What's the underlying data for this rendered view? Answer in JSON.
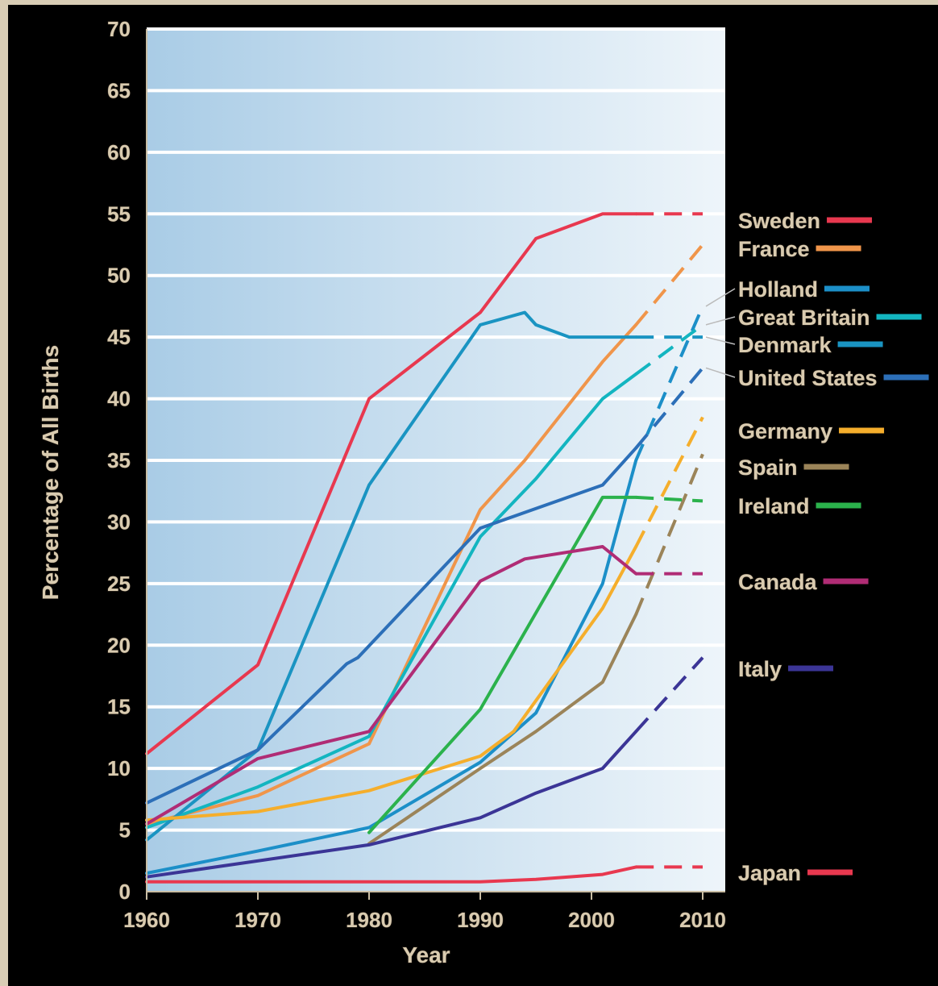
{
  "chart_data": {
    "type": "line",
    "title": "",
    "xlabel": "Year",
    "ylabel": "Percentage of All Births",
    "xlim": [
      1960,
      2010
    ],
    "ylim": [
      0,
      70
    ],
    "x_ticks": [
      1960,
      1970,
      1980,
      1990,
      2000,
      2010
    ],
    "y_ticks": [
      0,
      5,
      10,
      15,
      20,
      25,
      30,
      35,
      40,
      45,
      50,
      55,
      60,
      65,
      70
    ],
    "grid": true,
    "legend_position": "right",
    "series": [
      {
        "name": "Sweden",
        "color": "#e8384f",
        "points": [
          [
            1960,
            11.2
          ],
          [
            1970,
            18.4
          ],
          [
            1980,
            40
          ],
          [
            1990,
            47
          ],
          [
            1995,
            53
          ],
          [
            2001,
            55
          ],
          [
            2004,
            55
          ]
        ],
        "projection": [
          [
            2004,
            55
          ],
          [
            2010,
            55
          ]
        ]
      },
      {
        "name": "France",
        "color": "#f0954a",
        "points": [
          [
            1960,
            5.5
          ],
          [
            1970,
            7.8
          ],
          [
            1980,
            12
          ],
          [
            1990,
            31
          ],
          [
            1994,
            35
          ],
          [
            2001,
            43
          ],
          [
            2004,
            46
          ]
        ],
        "projection": [
          [
            2004,
            46
          ],
          [
            2010,
            52.5
          ]
        ]
      },
      {
        "name": "Holland",
        "color": "#1c8fc8",
        "points": [
          [
            1960,
            1.5
          ],
          [
            1970,
            3.3
          ],
          [
            1980,
            5.2
          ],
          [
            1990,
            10.5
          ],
          [
            1995,
            14.5
          ],
          [
            2001,
            25
          ],
          [
            2004,
            35
          ]
        ],
        "projection": [
          [
            2004,
            35
          ],
          [
            2010,
            47.5
          ]
        ]
      },
      {
        "name": "Great Britain",
        "color": "#13b5c0",
        "points": [
          [
            1960,
            5.2
          ],
          [
            1970,
            8.5
          ],
          [
            1980,
            12.6
          ],
          [
            1990,
            28.8
          ],
          [
            1995,
            33.5
          ],
          [
            2001,
            40
          ],
          [
            2004,
            42
          ]
        ],
        "projection": [
          [
            2004,
            42
          ],
          [
            2010,
            46
          ]
        ]
      },
      {
        "name": "Denmark",
        "color": "#1a94c2",
        "points": [
          [
            1960,
            4.2
          ],
          [
            1970,
            11.5
          ],
          [
            1980,
            33
          ],
          [
            1990,
            46
          ],
          [
            1994,
            47
          ],
          [
            1995,
            46
          ],
          [
            1998,
            45
          ],
          [
            2004,
            45
          ]
        ],
        "projection": [
          [
            2004,
            45
          ],
          [
            2010,
            45
          ]
        ]
      },
      {
        "name": "United States",
        "color": "#2c6fb8",
        "points": [
          [
            1960,
            7.2
          ],
          [
            1970,
            11.5
          ],
          [
            1978,
            18.5
          ],
          [
            1979,
            19
          ],
          [
            1990,
            29.5
          ],
          [
            2001,
            33
          ],
          [
            2004,
            36
          ]
        ],
        "projection": [
          [
            2004,
            36
          ],
          [
            2010,
            42.5
          ]
        ]
      },
      {
        "name": "Germany",
        "color": "#f5ae2c",
        "points": [
          [
            1960,
            5.8
          ],
          [
            1970,
            6.5
          ],
          [
            1980,
            8.2
          ],
          [
            1990,
            11
          ],
          [
            1993,
            13
          ],
          [
            2001,
            23
          ],
          [
            2004,
            28
          ]
        ],
        "projection": [
          [
            2004,
            28
          ],
          [
            2010,
            38.5
          ]
        ]
      },
      {
        "name": "Spain",
        "color": "#9b8459",
        "points": [
          [
            1980,
            3.9
          ],
          [
            1990,
            10
          ],
          [
            1995,
            13
          ],
          [
            2001,
            17
          ],
          [
            2004,
            22.5
          ]
        ],
        "projection": [
          [
            2004,
            22.5
          ],
          [
            2010,
            35.5
          ]
        ]
      },
      {
        "name": "Ireland",
        "color": "#2bb24c",
        "points": [
          [
            1980,
            4.8
          ],
          [
            1990,
            14.8
          ],
          [
            2001,
            32
          ],
          [
            2004,
            32
          ]
        ],
        "projection": [
          [
            2004,
            32
          ],
          [
            2010,
            31.7
          ]
        ]
      },
      {
        "name": "Canada",
        "color": "#b02c75",
        "points": [
          [
            1960,
            5.5
          ],
          [
            1970,
            10.8
          ],
          [
            1980,
            13
          ],
          [
            1990,
            25.2
          ],
          [
            1994,
            27
          ],
          [
            2001,
            28
          ],
          [
            2004,
            25.8
          ]
        ],
        "projection": [
          [
            2004,
            25.8
          ],
          [
            2010,
            25.8
          ]
        ]
      },
      {
        "name": "Italy",
        "color": "#3b3596",
        "points": [
          [
            1960,
            1.2
          ],
          [
            1980,
            3.8
          ],
          [
            1990,
            6
          ],
          [
            1995,
            8
          ],
          [
            2001,
            10
          ],
          [
            2004,
            13
          ]
        ],
        "projection": [
          [
            2004,
            13
          ],
          [
            2010,
            19
          ]
        ]
      },
      {
        "name": "Japan",
        "color": "#e8384f",
        "points": [
          [
            1960,
            0.8
          ],
          [
            1990,
            0.8
          ],
          [
            1995,
            1
          ],
          [
            2001,
            1.4
          ],
          [
            2004,
            2
          ]
        ],
        "projection": [
          [
            2004,
            2
          ],
          [
            2010,
            2
          ]
        ]
      }
    ]
  }
}
